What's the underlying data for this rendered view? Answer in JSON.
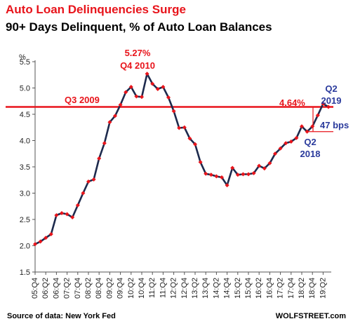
{
  "chart_data": {
    "type": "line",
    "title": "Auto Loan Delinquencies Surge",
    "subtitle": "90+ Days Delinquent, % of Auto Loan Balances",
    "ylabel": "%",
    "xlabel": "",
    "ylim": [
      1.5,
      5.5
    ],
    "yticks": [
      "1.5",
      "2.0",
      "2.5",
      "3.0",
      "3.5",
      "4.0",
      "4.5",
      "5.0",
      "5.5"
    ],
    "grid": false,
    "x_tick_labels": [
      "05:Q4",
      "06:Q2",
      "06:Q4",
      "07:Q2",
      "07:Q4",
      "08:Q2",
      "08:Q4",
      "09:Q2",
      "09:Q4",
      "10:Q2",
      "10:Q4",
      "11:Q2",
      "11:Q4",
      "12:Q2",
      "12:Q4",
      "13:Q2",
      "13:Q4",
      "14:Q2",
      "14:Q4",
      "15:Q2",
      "15:Q4",
      "16:Q2",
      "16:Q4",
      "17:Q2",
      "17:Q4",
      "18:Q2",
      "18:Q4",
      "19:Q2"
    ],
    "series": [
      {
        "values": [
          2.03,
          2.08,
          2.15,
          2.22,
          2.58,
          2.62,
          2.6,
          2.54,
          2.77,
          3.0,
          3.22,
          3.26,
          3.66,
          3.95,
          4.35,
          4.47,
          4.68,
          4.92,
          5.02,
          4.84,
          4.83,
          5.27,
          5.08,
          4.98,
          5.02,
          4.82,
          4.56,
          4.24,
          4.25,
          4.04,
          3.93,
          3.59,
          3.37,
          3.35,
          3.32,
          3.3,
          3.15,
          3.48,
          3.35,
          3.36,
          3.36,
          3.38,
          3.52,
          3.47,
          3.57,
          3.75,
          3.85,
          3.95,
          3.98,
          4.05,
          4.27,
          4.17,
          4.27,
          4.48,
          4.7,
          4.64
        ]
      }
    ],
    "reference_line": {
      "value": 4.64,
      "label": "4.64%"
    },
    "annotations": {
      "peak_value": "5.27%",
      "peak_period": "Q4 2010",
      "q3_2009": "Q3 2009",
      "q2_2019": "Q2\n2019",
      "q2_2018": "Q2\n2018",
      "bps": "47 bps"
    },
    "colors": {
      "line": "#1d2a4d",
      "markers": "#e8141b",
      "reference": "#e8141b",
      "title": "#e8141b",
      "blue_text": "#2a3a9c"
    }
  },
  "footer": {
    "source": "Source of data: New York Fed",
    "brand": "WOLFSTREET.com"
  }
}
